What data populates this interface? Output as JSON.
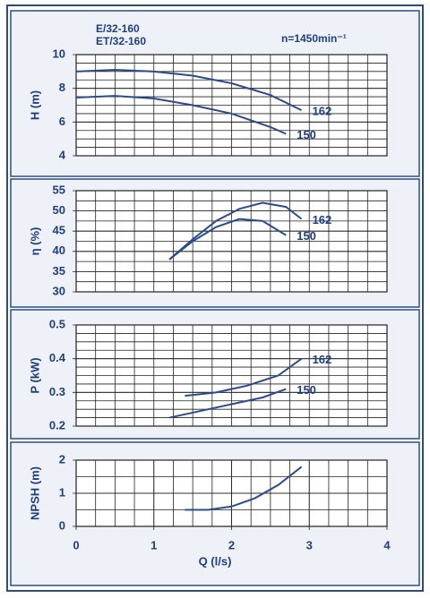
{
  "chart_data": [
    {
      "type": "line",
      "title": "E/32-160",
      "subtitle": "ET/32-160",
      "annotation": "n=1450min⁻¹",
      "ylabel": "H (m)",
      "xlim": [
        0,
        4
      ],
      "ylim": [
        4,
        10
      ],
      "yticks": [
        4,
        6,
        8,
        10
      ],
      "color": "#2b4c8c",
      "series": [
        {
          "name": "162",
          "x": [
            0,
            0.5,
            1,
            1.5,
            2,
            2.5,
            2.9
          ],
          "values": [
            9.0,
            9.1,
            9.0,
            8.75,
            8.3,
            7.6,
            6.7
          ]
        },
        {
          "name": "150",
          "x": [
            0,
            0.5,
            1,
            1.5,
            2,
            2.5,
            2.7
          ],
          "values": [
            7.45,
            7.55,
            7.4,
            7.0,
            6.5,
            5.7,
            5.3
          ]
        }
      ]
    },
    {
      "type": "line",
      "ylabel": "η (%)",
      "xlim": [
        0,
        4
      ],
      "ylim": [
        30,
        55
      ],
      "yticks": [
        30,
        35,
        40,
        45,
        50,
        55
      ],
      "color": "#2b4c8c",
      "series": [
        {
          "name": "162",
          "x": [
            1.2,
            1.5,
            1.8,
            2.1,
            2.4,
            2.7,
            2.9
          ],
          "values": [
            38,
            43,
            47.5,
            50.5,
            52,
            51,
            48
          ]
        },
        {
          "name": "150",
          "x": [
            1.2,
            1.5,
            1.8,
            2.1,
            2.4,
            2.7
          ],
          "values": [
            38,
            42.5,
            46,
            48,
            47.5,
            44
          ]
        }
      ]
    },
    {
      "type": "line",
      "ylabel": "P (kW)",
      "xlim": [
        0,
        4
      ],
      "ylim": [
        0.2,
        0.5
      ],
      "yticks": [
        0.2,
        0.3,
        0.4,
        0.5
      ],
      "color": "#2b4c8c",
      "series": [
        {
          "name": "162",
          "x": [
            1.4,
            1.8,
            2.2,
            2.6,
            2.9
          ],
          "values": [
            0.29,
            0.3,
            0.32,
            0.35,
            0.4
          ]
        },
        {
          "name": "150",
          "x": [
            1.2,
            1.6,
            2.0,
            2.4,
            2.7
          ],
          "values": [
            0.225,
            0.245,
            0.265,
            0.285,
            0.31
          ]
        }
      ]
    },
    {
      "type": "line",
      "ylabel": "NPSH (m)",
      "xlabel": "Q (l/s)",
      "xlim": [
        0,
        4
      ],
      "xticks": [
        0,
        1,
        2,
        3,
        4
      ],
      "ylim": [
        0,
        2
      ],
      "yticks": [
        0,
        1,
        2
      ],
      "color": "#2b4c8c",
      "series": [
        {
          "x": [
            1.4,
            1.7,
            2.0,
            2.3,
            2.6,
            2.9
          ],
          "values": [
            0.5,
            0.5,
            0.6,
            0.85,
            1.25,
            1.8
          ]
        }
      ]
    }
  ]
}
